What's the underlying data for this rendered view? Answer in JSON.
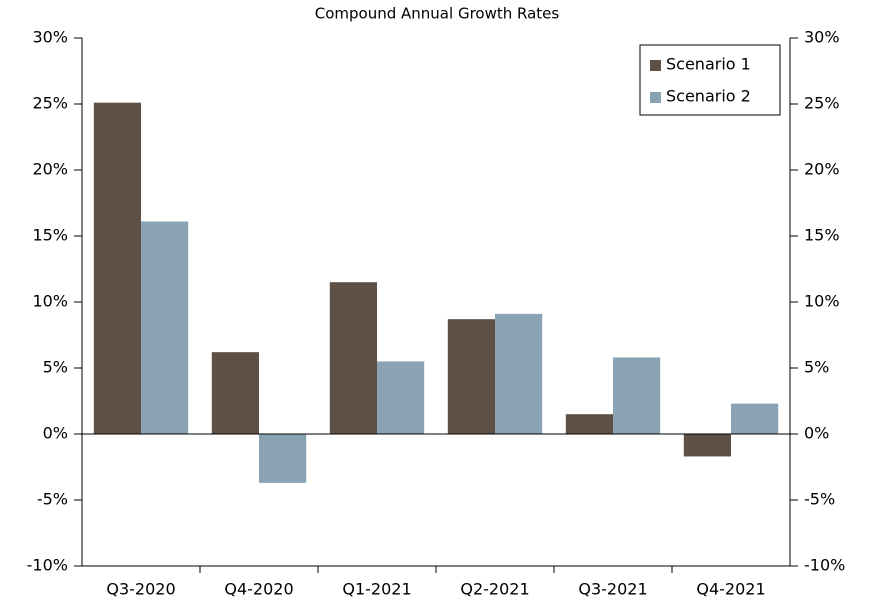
{
  "chart_data": {
    "type": "bar",
    "title": "Compound Annual Growth Rates",
    "categories": [
      "Q3-2020",
      "Q4-2020",
      "Q1-2021",
      "Q2-2021",
      "Q3-2021",
      "Q4-2021"
    ],
    "series": [
      {
        "name": "Scenario 1",
        "color": "#5f5045",
        "values": [
          25.1,
          6.2,
          11.5,
          8.7,
          1.5,
          -1.7
        ]
      },
      {
        "name": "Scenario 2",
        "color": "#8aa3b3",
        "values": [
          16.1,
          -3.7,
          5.5,
          9.1,
          5.8,
          2.3
        ]
      }
    ],
    "ylim": [
      -10,
      30
    ],
    "yticks": [
      {
        "value": -10,
        "label": "-10%"
      },
      {
        "value": -5,
        "label": "-5%"
      },
      {
        "value": 0,
        "label": "0%"
      },
      {
        "value": 5,
        "label": "5%"
      },
      {
        "value": 10,
        "label": "10%"
      },
      {
        "value": 15,
        "label": "15%"
      },
      {
        "value": 20,
        "label": "20%"
      },
      {
        "value": 25,
        "label": "25%"
      },
      {
        "value": 30,
        "label": "30%"
      }
    ],
    "y2lim": [
      -10,
      30
    ],
    "y2ticks": [
      {
        "value": -10,
        "label": "-10%"
      },
      {
        "value": -5,
        "label": "-5%"
      },
      {
        "value": 0,
        "label": "0%"
      },
      {
        "value": 5,
        "label": "5%"
      },
      {
        "value": 10,
        "label": "10%"
      },
      {
        "value": 15,
        "label": "15%"
      },
      {
        "value": 20,
        "label": "20%"
      },
      {
        "value": 25,
        "label": "25%"
      },
      {
        "value": 30,
        "label": "30%"
      }
    ],
    "grid": false,
    "legend": "upper right"
  }
}
